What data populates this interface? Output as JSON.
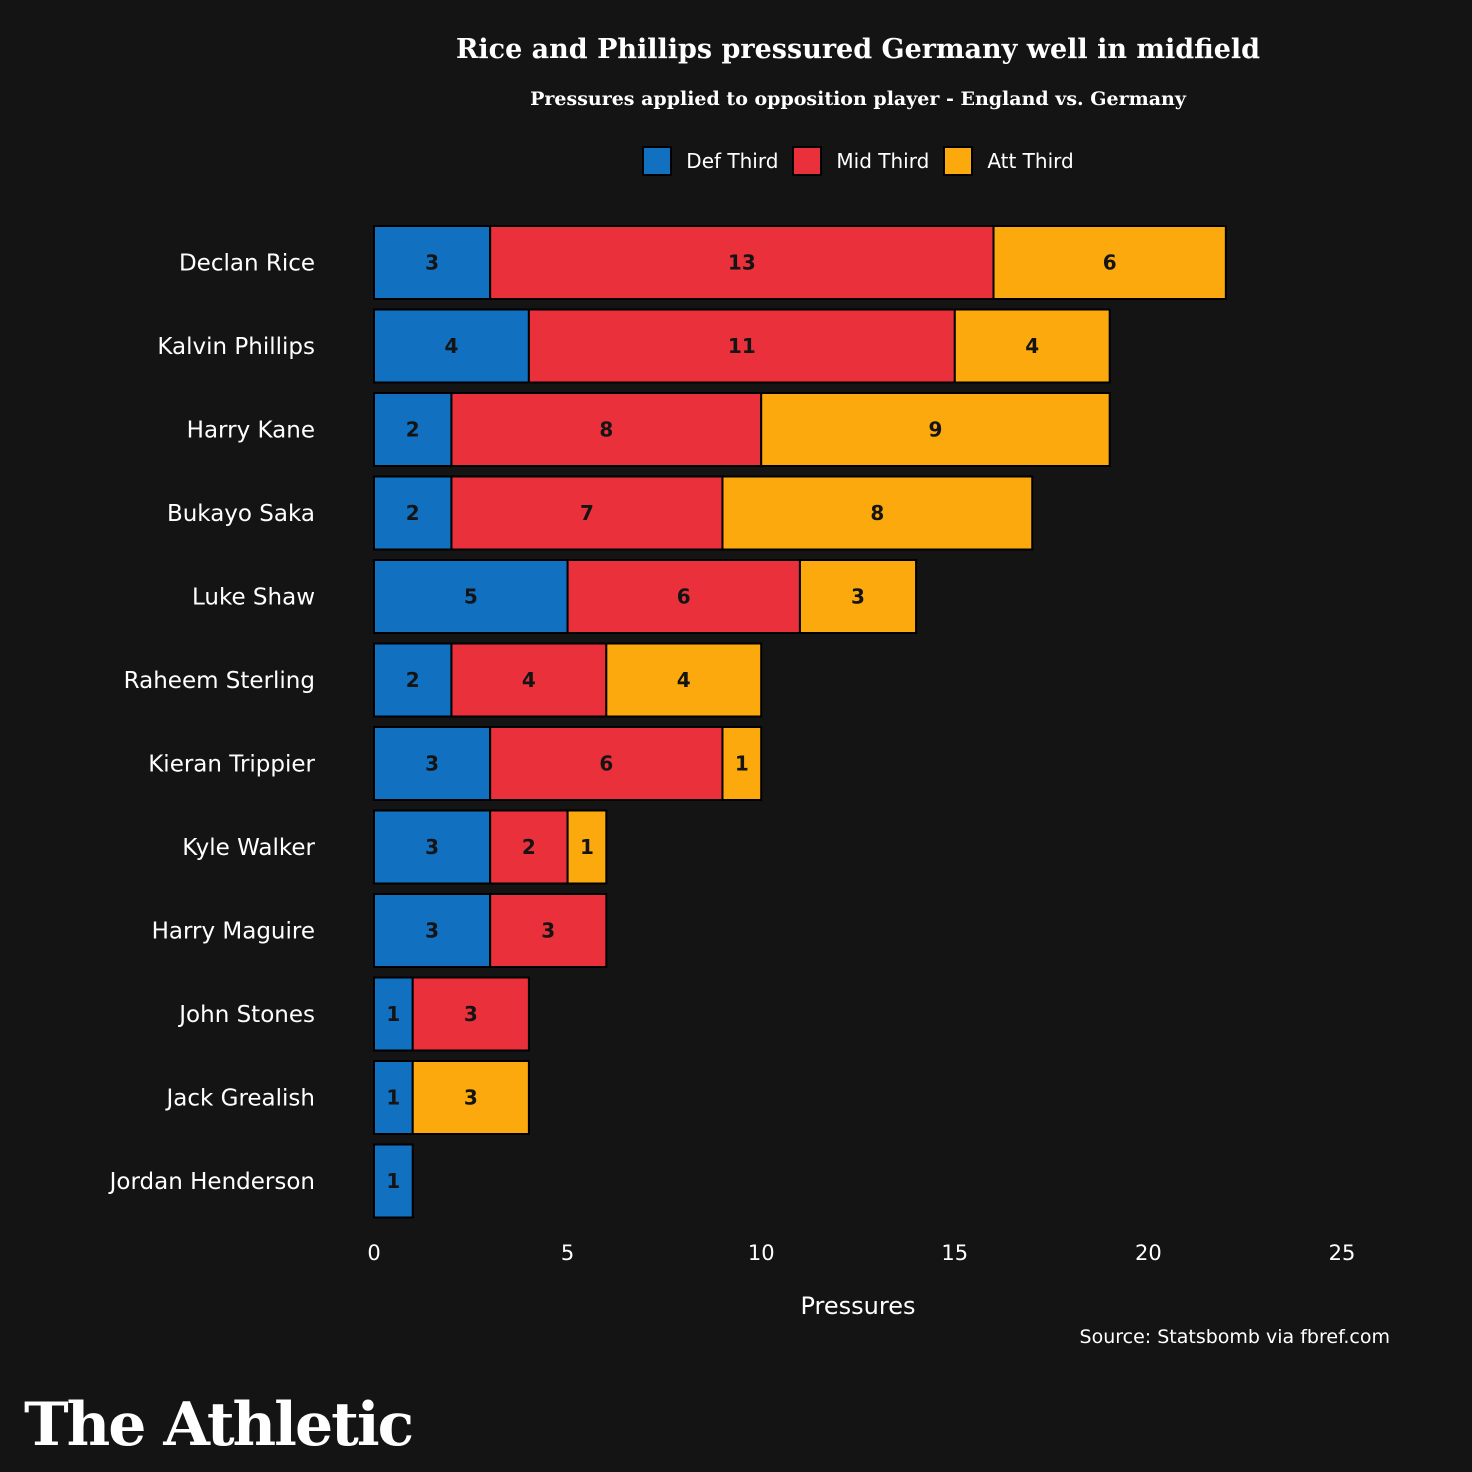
{
  "chart_data": {
    "type": "bar",
    "orientation": "horizontal",
    "stacked": true,
    "title": "Rice and Phillips pressured Germany well in midfield",
    "subtitle": "Pressures applied to opposition player - England vs. Germany",
    "xlabel": "Pressures",
    "ylabel": "",
    "xlim": [
      0,
      25
    ],
    "xticks": [
      0,
      5,
      10,
      15,
      20,
      25
    ],
    "grid": false,
    "legend_position": "top-center",
    "categories": [
      "Declan Rice",
      "Kalvin Phillips",
      "Harry Kane",
      "Bukayo Saka",
      "Luke Shaw",
      "Raheem Sterling",
      "Kieran Trippier",
      "Kyle Walker",
      "Harry Maguire",
      "John Stones",
      "Jack Grealish",
      "Jordan Henderson"
    ],
    "series": [
      {
        "name": "Def Third",
        "color": "#1170c0",
        "values": [
          3,
          4,
          2,
          2,
          5,
          2,
          3,
          3,
          3,
          1,
          1,
          1
        ]
      },
      {
        "name": "Mid Third",
        "color": "#ea313b",
        "values": [
          13,
          11,
          8,
          7,
          6,
          4,
          6,
          2,
          3,
          3,
          0,
          0
        ]
      },
      {
        "name": "Att Third",
        "color": "#fca90d",
        "values": [
          6,
          4,
          9,
          8,
          3,
          4,
          1,
          1,
          0,
          0,
          3,
          0
        ]
      }
    ]
  },
  "source": "Source: Statsbomb via fbref.com",
  "brand": "The Athletic"
}
